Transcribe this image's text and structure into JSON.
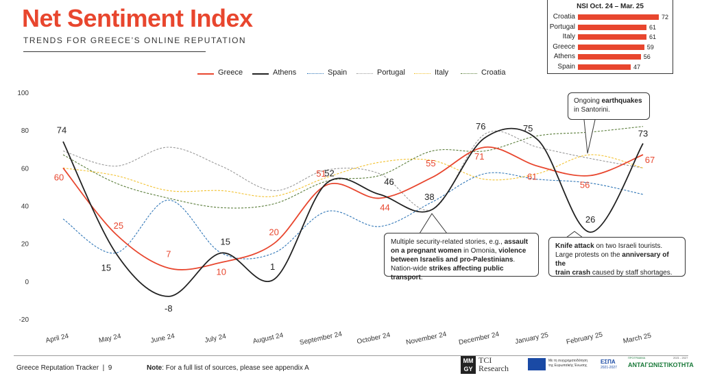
{
  "header": {
    "title": "Net Sentiment Index",
    "subtitle": "TRENDS FOR GREECE’S ONLINE REPUTATION"
  },
  "inset": {
    "title": "NSI Oct. 24 – Mar. 25",
    "rows": [
      {
        "label": "Croatia",
        "value": 72
      },
      {
        "label": "Portugal",
        "value": 61
      },
      {
        "label": "Italy",
        "value": 61
      },
      {
        "label": "Greece",
        "value": 59
      },
      {
        "label": "Athens",
        "value": 56
      },
      {
        "label": "Spain",
        "value": 47
      }
    ]
  },
  "chart_data": {
    "type": "line",
    "categories": [
      "April 24",
      "May 24",
      "June 24",
      "July 24",
      "August 24",
      "September 24",
      "October 24",
      "November 24",
      "December 24",
      "January 25",
      "February 25",
      "March 25"
    ],
    "ylim": [
      -20,
      100
    ],
    "yticks": [
      -20,
      0,
      20,
      40,
      60,
      80,
      100
    ],
    "grid": false,
    "legend": "top",
    "series": [
      {
        "name": "Greece",
        "color": "#e8462e",
        "dash": "solid",
        "values": [
          60,
          25,
          7,
          10,
          20,
          51,
          44,
          55,
          71,
          61,
          56,
          67
        ],
        "labels": [
          "60",
          "25",
          "7",
          "10",
          "20",
          "51",
          "44",
          "55",
          "71",
          "61",
          "56",
          "67"
        ]
      },
      {
        "name": "Athens",
        "color": "#222222",
        "dash": "solid",
        "values": [
          74,
          15,
          -8,
          15,
          1,
          52,
          46,
          38,
          76,
          75,
          26,
          73
        ],
        "labels": [
          "74",
          "15",
          "-8",
          "15",
          "1",
          "52",
          "46",
          "38",
          "76",
          "75",
          "26",
          "73"
        ]
      },
      {
        "name": "Spain",
        "color": "#2e75b6",
        "dash": "dotted",
        "values": [
          33,
          15,
          43,
          15,
          15,
          37,
          29,
          42,
          57,
          54,
          52,
          46
        ]
      },
      {
        "name": "Portugal",
        "color": "#999999",
        "dash": "dotted",
        "values": [
          69,
          61,
          71,
          61,
          48,
          59,
          57,
          38,
          78,
          71,
          65,
          60
        ]
      },
      {
        "name": "Italy",
        "color": "#f2c12e",
        "dash": "dotted",
        "values": [
          60,
          56,
          48,
          48,
          45,
          55,
          63,
          64,
          54,
          57,
          67,
          60
        ]
      },
      {
        "name": "Croatia",
        "color": "#5a7d3a",
        "dash": "dotted",
        "values": [
          67,
          52,
          44,
          39,
          41,
          53,
          56,
          69,
          69,
          77,
          79,
          82
        ]
      }
    ]
  },
  "callouts": {
    "santorini": {
      "pre": "Ongoing ",
      "bold": "earthquakes",
      "mid": " in Santorini",
      "post": "."
    },
    "november": {
      "l1a": "Multiple security-related stories, e.g., ",
      "l1b": "assault",
      "l2a": "on a pregnant women",
      "l2b": " in Omonia, ",
      "l2c": "violence",
      "l3a": "between Israelis and pro-Palestinians",
      "l3b": ".",
      "l4a": "Nation-wide ",
      "l4b": "strikes affecting public transport",
      "l4c": "."
    },
    "february": {
      "l1a": "Knife attack",
      "l1b": " on two Israeli tourists.",
      "l2a": "Large protests on the ",
      "l2b": "anniversary of the",
      "l3a": "train crash",
      "l3b": " caused by staff shortages."
    }
  },
  "footer": {
    "left": "Greece Reputation Tracker  |  9",
    "note_bold": "Note",
    "note_text": ": For a full list of sources, please see appendix A",
    "logo1_a": "MM",
    "logo1_b": "GY",
    "logo1_c": "TCI",
    "logo1_d": "Research",
    "logo2_text1": "Με τη συγχρηματοδότηση",
    "logo2_text2": "της Ευρωπαϊκής Ένωσης",
    "logo3": "ΕΣΠΑ",
    "logo3_sub": "2021-2027",
    "logo4_small": "ΠΡΟΓΡΑΜΜΑ",
    "logo4": "ΑΝΤΑΓΩΝΙΣΤΙΚΟΤΗΤΑ",
    "logo4_years": "2021 - 2027"
  }
}
